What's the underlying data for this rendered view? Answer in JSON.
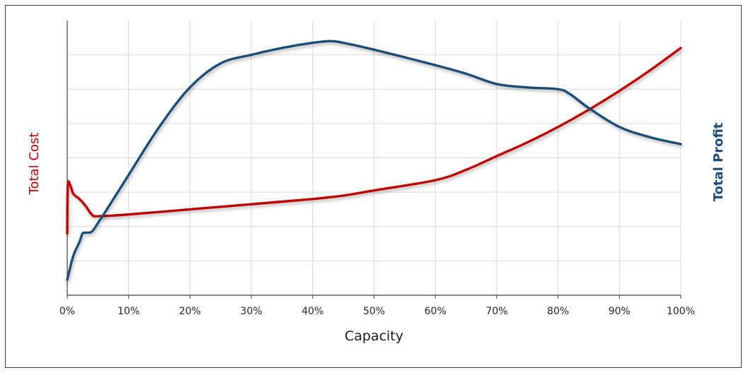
{
  "chart_data": {
    "type": "line",
    "title": "",
    "xlabel": "Capacity",
    "ylabel_left": "Total Cost",
    "ylabel_right": "Total Profit",
    "x_ticks": [
      "0%",
      "10%",
      "20%",
      "30%",
      "40%",
      "50%",
      "60%",
      "70%",
      "80%",
      "90%",
      "100%"
    ],
    "xlim": [
      0,
      100
    ],
    "ylim": [
      0,
      8
    ],
    "y_gridlines": [
      1,
      2,
      3,
      4,
      5,
      6,
      7
    ],
    "grid": true,
    "legend": "none",
    "colors": {
      "cost": "#c00000",
      "profit": "#1f4e79",
      "grid": "#d9d9d9",
      "axis": "#404040"
    },
    "series": [
      {
        "name": "Total Cost",
        "axis": "left",
        "color": "#c00000",
        "points": [
          [
            0,
            1.8
          ],
          [
            0.1,
            3.2
          ],
          [
            0.5,
            3.2
          ],
          [
            1,
            2.95
          ],
          [
            2,
            2.8
          ],
          [
            3,
            2.6
          ],
          [
            4,
            2.35
          ],
          [
            5,
            2.3
          ],
          [
            10,
            2.35
          ],
          [
            20,
            2.5
          ],
          [
            30,
            2.65
          ],
          [
            40,
            2.8
          ],
          [
            45,
            2.9
          ],
          [
            50,
            3.05
          ],
          [
            60,
            3.35
          ],
          [
            65,
            3.65
          ],
          [
            70,
            4.05
          ],
          [
            75,
            4.45
          ],
          [
            80,
            4.9
          ],
          [
            85,
            5.4
          ],
          [
            90,
            5.95
          ],
          [
            95,
            6.55
          ],
          [
            100,
            7.2
          ]
        ]
      },
      {
        "name": "Total Profit",
        "axis": "right",
        "color": "#1f4e79",
        "points": [
          [
            0,
            0.45
          ],
          [
            1,
            1.15
          ],
          [
            2,
            1.55
          ],
          [
            2.5,
            1.8
          ],
          [
            3,
            1.82
          ],
          [
            4,
            1.85
          ],
          [
            5,
            2.1
          ],
          [
            7,
            2.65
          ],
          [
            10,
            3.5
          ],
          [
            15,
            4.9
          ],
          [
            20,
            6.05
          ],
          [
            25,
            6.75
          ],
          [
            30,
            7.0
          ],
          [
            35,
            7.2
          ],
          [
            40,
            7.35
          ],
          [
            43,
            7.4
          ],
          [
            45,
            7.35
          ],
          [
            50,
            7.15
          ],
          [
            60,
            6.7
          ],
          [
            65,
            6.45
          ],
          [
            70,
            6.15
          ],
          [
            75,
            6.05
          ],
          [
            80,
            6.0
          ],
          [
            82,
            5.85
          ],
          [
            85,
            5.45
          ],
          [
            90,
            4.9
          ],
          [
            95,
            4.6
          ],
          [
            100,
            4.4
          ]
        ]
      }
    ]
  }
}
